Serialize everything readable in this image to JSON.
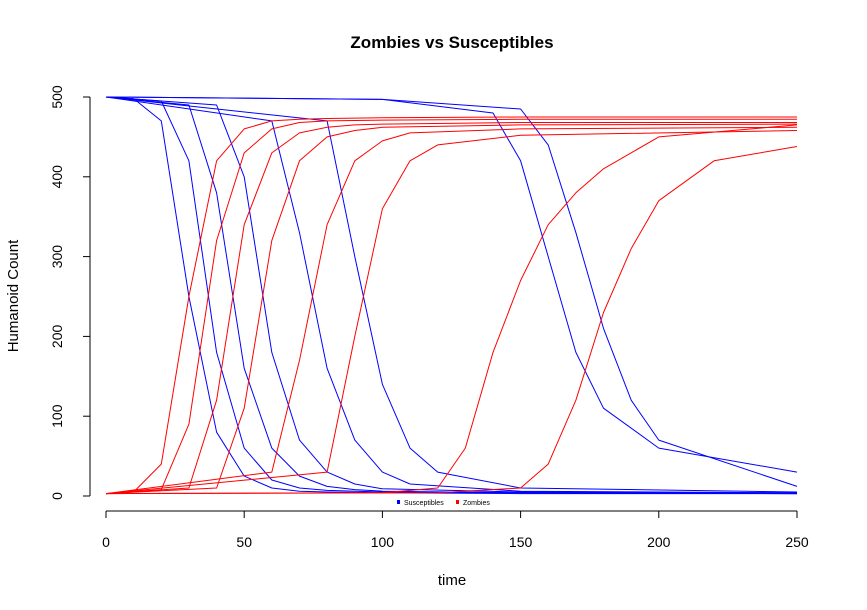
{
  "chart_data": {
    "type": "line",
    "title": "Zombies vs Susceptibles",
    "xlabel": "time",
    "ylabel": "Humanoid Count",
    "xlim": [
      0,
      250
    ],
    "ylim": [
      0,
      500
    ],
    "xticks": [
      "0",
      "50",
      "100",
      "150",
      "200",
      "250"
    ],
    "yticks": [
      "0",
      "100",
      "200",
      "300",
      "400",
      "500"
    ],
    "grid": false,
    "legend_position": "bottom-center",
    "legend": [
      {
        "label": "Susceptibles",
        "color": "#0000ff"
      },
      {
        "label": "Zombies",
        "color": "#ff0000"
      }
    ],
    "series": [
      {
        "name": "Susceptibles",
        "color": "#0000ff",
        "description": "many stochastic runs; each starts near 500 and falls to near 0",
        "runs": [
          {
            "x": [
              0,
              10,
              20,
              30,
              40,
              50,
              60,
              70,
              80,
              100,
              150,
              200,
              250
            ],
            "y": [
              500,
              498,
              470,
              250,
              80,
              25,
              10,
              6,
              5,
              4,
              3,
              3,
              3
            ]
          },
          {
            "x": [
              0,
              20,
              30,
              40,
              50,
              60,
              70,
              80,
              100,
              150,
              250
            ],
            "y": [
              500,
              495,
              420,
              180,
              60,
              20,
              10,
              7,
              5,
              4,
              3
            ]
          },
          {
            "x": [
              0,
              30,
              40,
              50,
              60,
              70,
              80,
              90,
              100,
              150,
              250
            ],
            "y": [
              500,
              490,
              380,
              160,
              60,
              25,
              12,
              8,
              6,
              4,
              3
            ]
          },
          {
            "x": [
              0,
              40,
              50,
              60,
              70,
              80,
              90,
              100,
              150,
              250
            ],
            "y": [
              500,
              490,
              400,
              180,
              70,
              30,
              15,
              9,
              5,
              4
            ]
          },
          {
            "x": [
              0,
              60,
              70,
              80,
              90,
              100,
              110,
              150,
              250
            ],
            "y": [
              500,
              470,
              330,
              160,
              70,
              30,
              15,
              6,
              4
            ]
          },
          {
            "x": [
              0,
              80,
              90,
              100,
              110,
              120,
              150,
              250
            ],
            "y": [
              500,
              470,
              300,
              140,
              60,
              30,
              10,
              5
            ]
          },
          {
            "x": [
              0,
              100,
              140,
              150,
              160,
              170,
              180,
              200,
              250
            ],
            "y": [
              500,
              497,
              480,
              420,
              300,
              180,
              110,
              60,
              30
            ]
          },
          {
            "x": [
              0,
              100,
              150,
              160,
              170,
              180,
              190,
              200,
              250
            ],
            "y": [
              500,
              497,
              485,
              440,
              330,
              210,
              120,
              70,
              12
            ]
          }
        ]
      },
      {
        "name": "Zombies",
        "color": "#ff0000",
        "description": "many stochastic runs; each starts near 3 and rises to about 450-480",
        "runs": [
          {
            "x": [
              0,
              10,
              20,
              30,
              40,
              50,
              60,
              70,
              80,
              100,
              150,
              200,
              250
            ],
            "y": [
              3,
              5,
              40,
              250,
              420,
              460,
              470,
              472,
              473,
              474,
              475,
              475,
              475
            ]
          },
          {
            "x": [
              0,
              20,
              30,
              40,
              50,
              60,
              70,
              80,
              100,
              150,
              250
            ],
            "y": [
              3,
              8,
              90,
              320,
              430,
              460,
              468,
              470,
              471,
              472,
              472
            ]
          },
          {
            "x": [
              0,
              30,
              40,
              50,
              60,
              70,
              80,
              90,
              100,
              150,
              250
            ],
            "y": [
              3,
              10,
              120,
              340,
              430,
              455,
              462,
              465,
              466,
              468,
              468
            ]
          },
          {
            "x": [
              0,
              40,
              50,
              60,
              70,
              80,
              90,
              100,
              150,
              250
            ],
            "y": [
              3,
              10,
              110,
              320,
              420,
              450,
              458,
              462,
              465,
              466
            ]
          },
          {
            "x": [
              0,
              60,
              70,
              80,
              90,
              100,
              110,
              150,
              250
            ],
            "y": [
              3,
              30,
              170,
              340,
              420,
              445,
              455,
              460,
              462
            ]
          },
          {
            "x": [
              0,
              80,
              90,
              100,
              110,
              120,
              150,
              250
            ],
            "y": [
              3,
              30,
              200,
              360,
              420,
              440,
              452,
              458
            ]
          },
          {
            "x": [
              0,
              100,
              120,
              130,
              140,
              150,
              160,
              170,
              180,
              200,
              250
            ],
            "y": [
              3,
              4,
              10,
              60,
              180,
              270,
              340,
              380,
              410,
              450,
              465
            ]
          },
          {
            "x": [
              0,
              120,
              150,
              160,
              170,
              180,
              190,
              200,
              220,
              250
            ],
            "y": [
              3,
              4,
              10,
              40,
              120,
              230,
              310,
              370,
              420,
              438
            ]
          }
        ]
      }
    ]
  }
}
